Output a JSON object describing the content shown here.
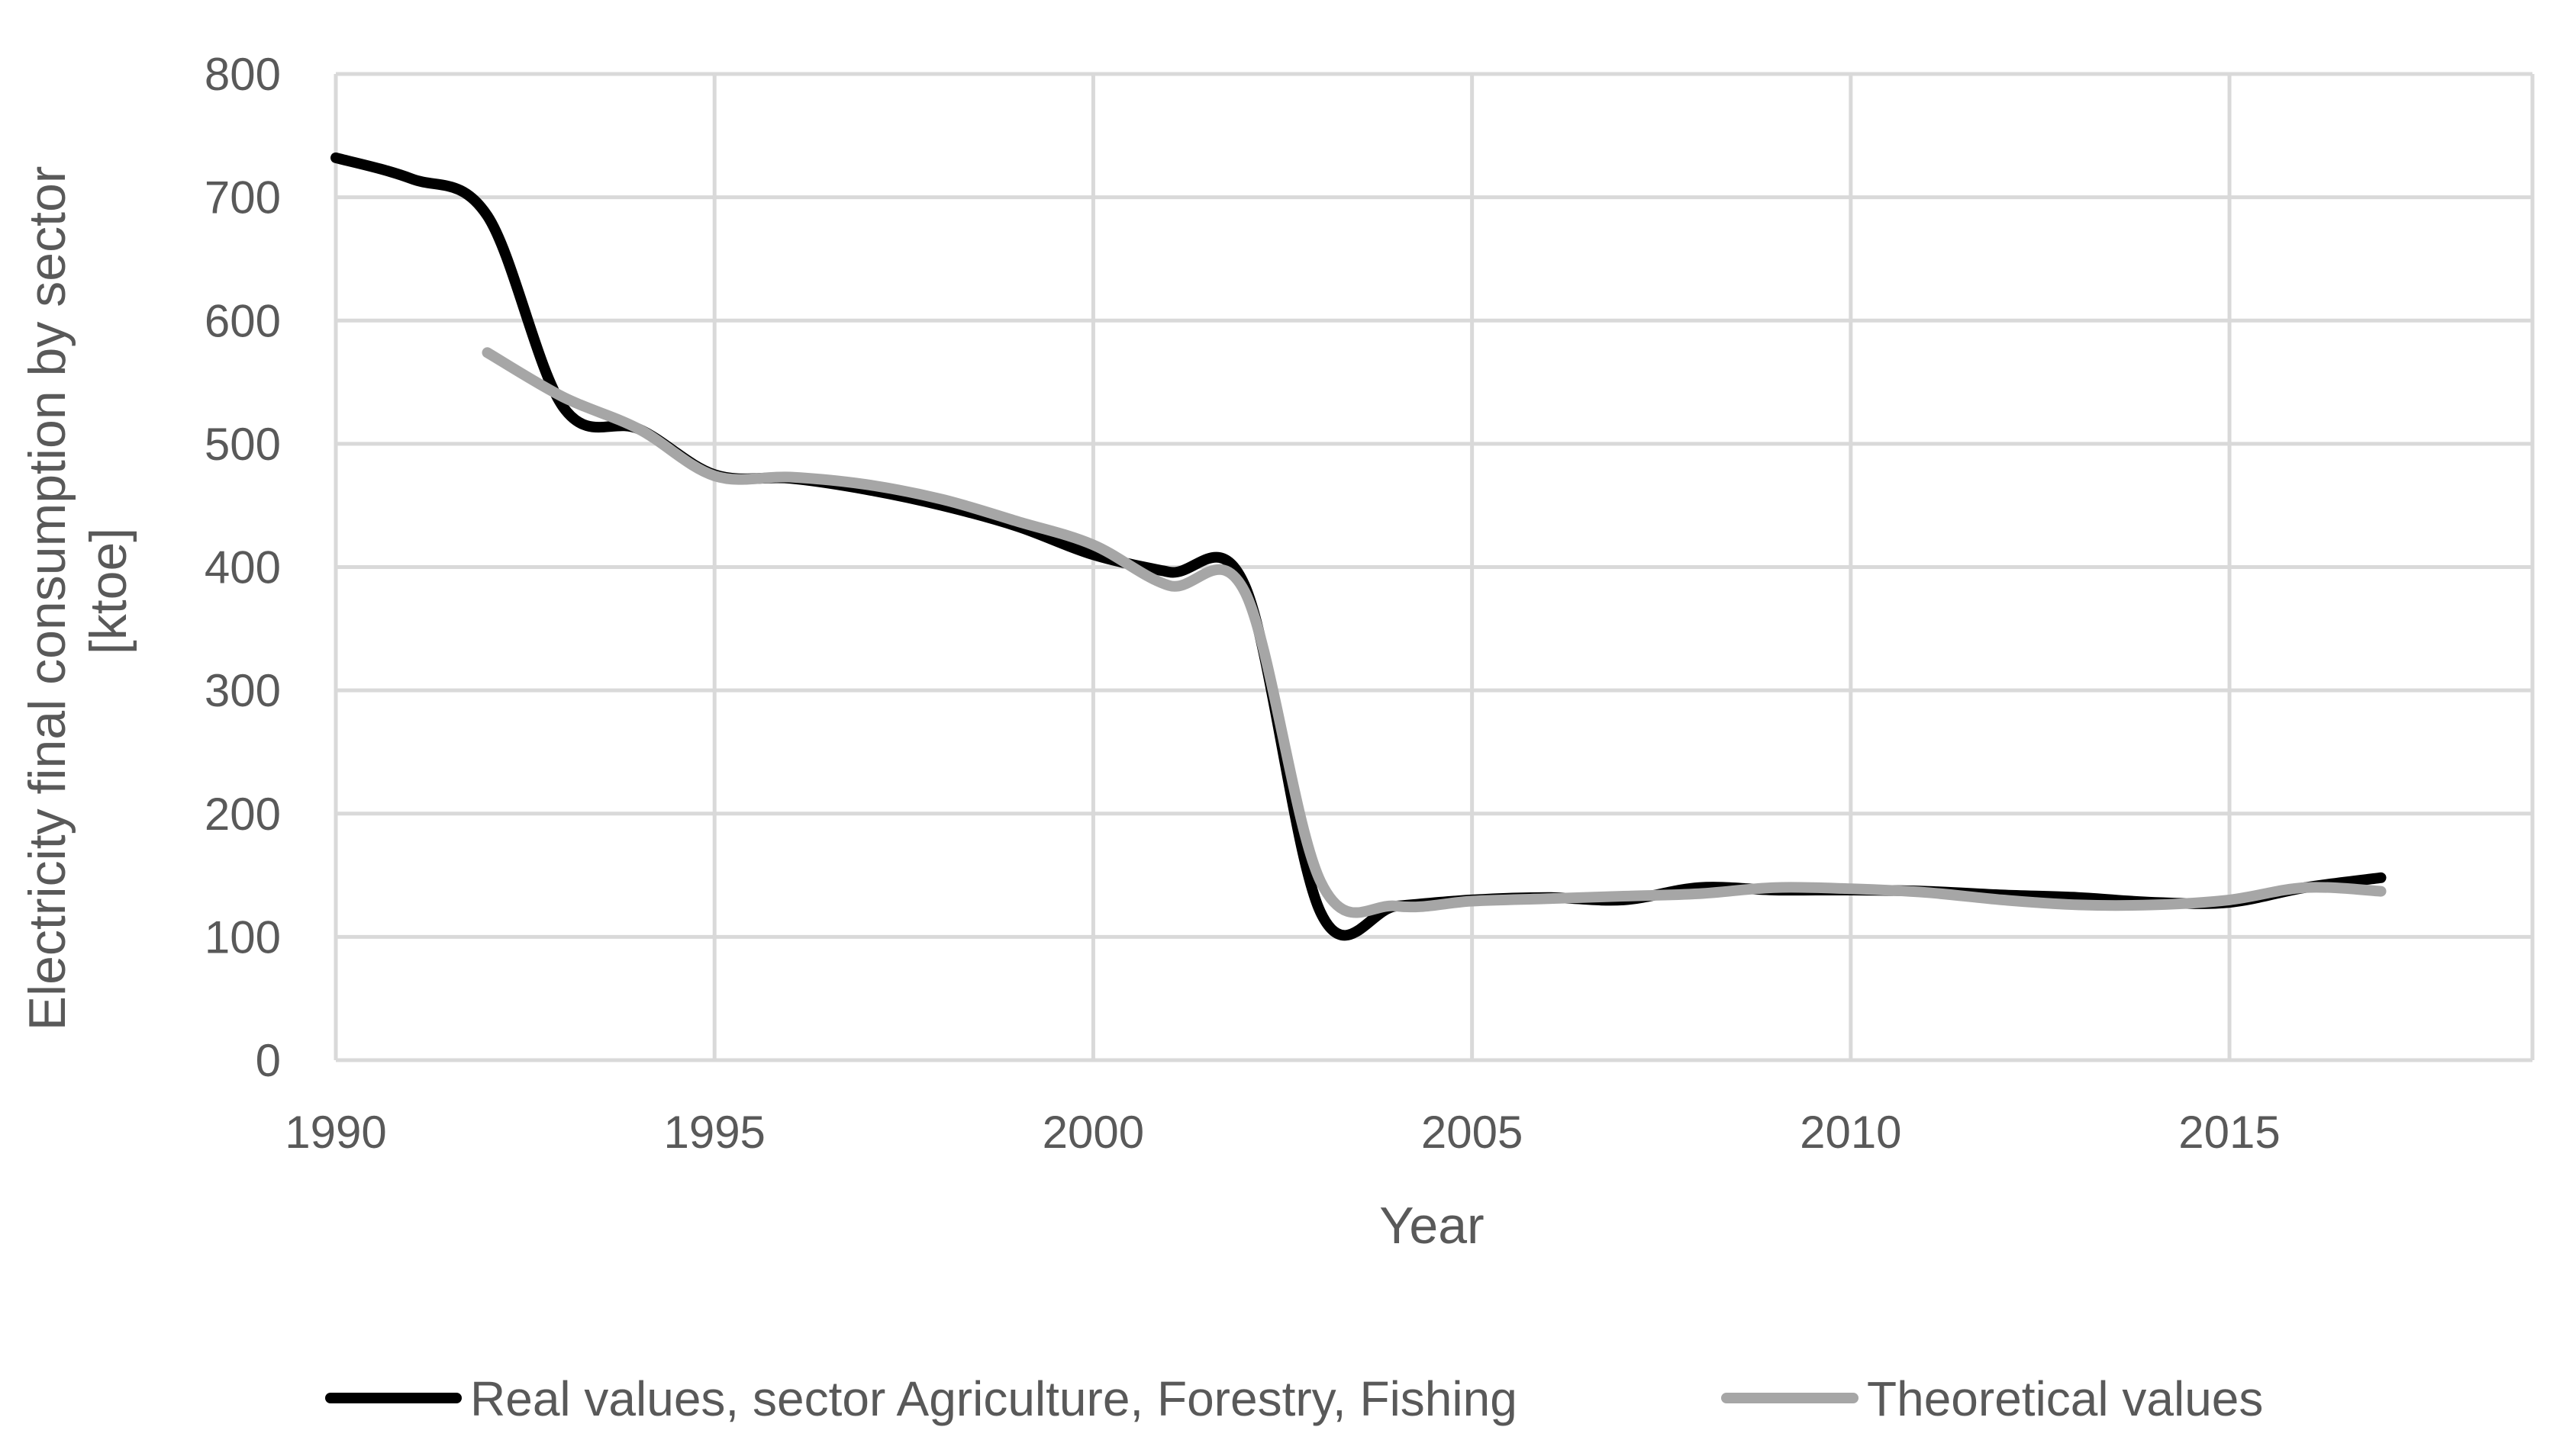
{
  "chart_data": {
    "type": "line",
    "title": "",
    "xlabel": "Year",
    "ylabel_lines": [
      "Electricity final consumption by sector",
      "[ktoe]"
    ],
    "xlim": [
      1990,
      2019
    ],
    "ylim": [
      0,
      800
    ],
    "xticks": [
      1990,
      1995,
      2000,
      2005,
      2010,
      2015
    ],
    "yticks": [
      0,
      100,
      200,
      300,
      400,
      500,
      600,
      700,
      800
    ],
    "grid": true,
    "legend_position": "bottom",
    "series": [
      {
        "name": "Real values, sector Agriculture, Forestry, Fishing",
        "color": "#000000",
        "x": [
          1990,
          1991,
          1992,
          1993,
          1994,
          1995,
          1996,
          1997,
          1998,
          1999,
          2000,
          2001,
          2002,
          2003,
          2004,
          2005,
          2006,
          2007,
          2008,
          2009,
          2010,
          2011,
          2012,
          2013,
          2014,
          2015,
          2016,
          2017
        ],
        "values": [
          732,
          715,
          685,
          530,
          512,
          475,
          472,
          463,
          450,
          433,
          410,
          396,
          385,
          120,
          125,
          130,
          132,
          130,
          140,
          138,
          138,
          137,
          134,
          132,
          128,
          128,
          140,
          148
        ]
      },
      {
        "name": "Theoretical values",
        "color": "#a6a6a6",
        "x": [
          1992,
          1993,
          1994,
          1995,
          1996,
          1997,
          1998,
          1999,
          2000,
          2001,
          2002,
          2003,
          2004,
          2005,
          2006,
          2007,
          2008,
          2009,
          2010,
          2011,
          2012,
          2013,
          2014,
          2015,
          2016,
          2017
        ],
        "values": [
          574,
          538,
          512,
          474,
          473,
          467,
          455,
          437,
          418,
          385,
          380,
          145,
          125,
          129,
          131,
          133,
          135,
          140,
          139,
          136,
          130,
          126,
          126,
          130,
          140,
          137
        ]
      }
    ]
  }
}
